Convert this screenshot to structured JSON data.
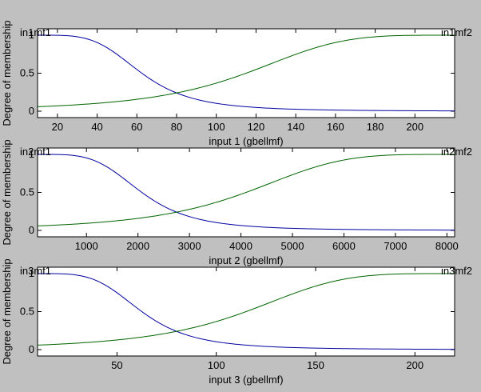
{
  "colors": {
    "background": "#c0c0c0",
    "axes_bg": "#ffffff",
    "series_1": "#0000a0",
    "series_2": "#006400"
  },
  "chart_data": [
    {
      "type": "line",
      "xlabel": "input 1 (gbellmf)",
      "ylabel": "Degree of membership",
      "xlim": [
        10,
        220
      ],
      "ylim": [
        0,
        1
      ],
      "xticks": [
        20,
        40,
        60,
        80,
        100,
        120,
        140,
        160,
        180,
        200
      ],
      "yticks": [
        "0",
        "0.5",
        "1"
      ],
      "grid": false,
      "series": [
        {
          "name": "in1mf1",
          "label_position": "top-left",
          "color": "#0000a0",
          "type": "gbellmf",
          "params": {
            "a": 52.5,
            "b": 2,
            "c": 10
          }
        },
        {
          "name": "in1mf2",
          "label_position": "top-right",
          "color": "#006400",
          "type": "gbellmf",
          "params": {
            "a": 105,
            "b": 2,
            "c": 220
          }
        }
      ]
    },
    {
      "type": "line",
      "xlabel": "input 2 (gbellmf)",
      "ylabel": "Degree of membership",
      "xlim": [
        50,
        8150
      ],
      "ylim": [
        0,
        1
      ],
      "xticks": [
        1000,
        2000,
        3000,
        4000,
        5000,
        6000,
        7000,
        8000
      ],
      "yticks": [
        "0",
        "0.5",
        "1"
      ],
      "grid": false,
      "series": [
        {
          "name": "in2mf1",
          "label_position": "top-left",
          "color": "#0000a0",
          "type": "gbellmf",
          "params": {
            "a": 2025,
            "b": 2,
            "c": 50
          }
        },
        {
          "name": "in2mf2",
          "label_position": "top-right",
          "color": "#006400",
          "type": "gbellmf",
          "params": {
            "a": 4050,
            "b": 2,
            "c": 8150
          }
        }
      ]
    },
    {
      "type": "line",
      "xlabel": "input 3 (gbellmf)",
      "ylabel": "Degree of membership",
      "xlim": [
        10,
        220
      ],
      "ylim": [
        0,
        1
      ],
      "xticks": [
        50,
        100,
        150,
        200
      ],
      "yticks": [
        "0",
        "0.5",
        "1"
      ],
      "grid": false,
      "series": [
        {
          "name": "in3mf1",
          "label_position": "top-left",
          "color": "#0000a0",
          "type": "gbellmf",
          "params": {
            "a": 52.5,
            "b": 2,
            "c": 10
          }
        },
        {
          "name": "in3mf2",
          "label_position": "top-right",
          "color": "#006400",
          "type": "gbellmf",
          "params": {
            "a": 105,
            "b": 2,
            "c": 220
          }
        }
      ]
    }
  ]
}
